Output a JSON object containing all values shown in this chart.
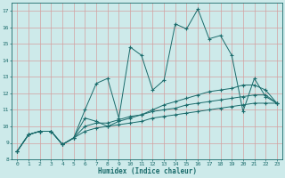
{
  "xlabel": "Humidex (Indice chaleur)",
  "xlim": [
    -0.5,
    23.5
  ],
  "ylim": [
    8,
    17.5
  ],
  "xticks": [
    0,
    1,
    2,
    3,
    4,
    5,
    6,
    7,
    8,
    9,
    10,
    11,
    12,
    13,
    14,
    15,
    16,
    17,
    18,
    19,
    20,
    21,
    22,
    23
  ],
  "yticks": [
    8,
    9,
    10,
    11,
    12,
    13,
    14,
    15,
    16,
    17
  ],
  "bg_color": "#cdeaea",
  "grid_color": "#d4a0a0",
  "line_color": "#1a6b6b",
  "lines": [
    {
      "x": [
        0,
        1,
        2,
        3,
        4,
        5,
        6,
        7,
        8,
        9,
        10,
        11,
        12,
        13,
        14,
        15,
        16,
        17,
        18,
        19,
        20,
        21,
        22,
        23
      ],
      "y": [
        8.5,
        9.5,
        9.7,
        9.7,
        8.9,
        9.3,
        11.0,
        12.6,
        12.9,
        10.5,
        14.8,
        14.3,
        12.2,
        12.8,
        16.2,
        15.9,
        17.1,
        15.3,
        15.5,
        14.3,
        10.9,
        12.9,
        11.8,
        11.4
      ]
    },
    {
      "x": [
        0,
        1,
        2,
        3,
        4,
        5,
        6,
        7,
        8,
        9,
        10,
        11,
        12,
        13,
        14,
        15,
        16,
        17,
        18,
        19,
        20,
        21,
        22,
        23
      ],
      "y": [
        8.5,
        9.5,
        9.7,
        9.7,
        8.9,
        9.3,
        10.5,
        10.3,
        10.0,
        10.3,
        10.5,
        10.7,
        11.0,
        11.3,
        11.5,
        11.7,
        11.9,
        12.1,
        12.2,
        12.3,
        12.5,
        12.5,
        12.2,
        11.4
      ]
    },
    {
      "x": [
        0,
        1,
        2,
        3,
        4,
        5,
        6,
        7,
        8,
        9,
        10,
        11,
        12,
        13,
        14,
        15,
        16,
        17,
        18,
        19,
        20,
        21,
        22,
        23
      ],
      "y": [
        8.5,
        9.5,
        9.7,
        9.7,
        8.9,
        9.3,
        10.0,
        10.2,
        10.2,
        10.4,
        10.6,
        10.7,
        10.9,
        11.0,
        11.1,
        11.3,
        11.4,
        11.5,
        11.6,
        11.7,
        11.8,
        11.9,
        11.9,
        11.4
      ]
    },
    {
      "x": [
        0,
        1,
        2,
        3,
        4,
        5,
        6,
        7,
        8,
        9,
        10,
        11,
        12,
        13,
        14,
        15,
        16,
        17,
        18,
        19,
        20,
        21,
        22,
        23
      ],
      "y": [
        8.5,
        9.5,
        9.7,
        9.7,
        8.9,
        9.3,
        9.7,
        9.9,
        10.0,
        10.1,
        10.2,
        10.3,
        10.5,
        10.6,
        10.7,
        10.8,
        10.9,
        11.0,
        11.1,
        11.2,
        11.3,
        11.4,
        11.4,
        11.4
      ]
    }
  ]
}
